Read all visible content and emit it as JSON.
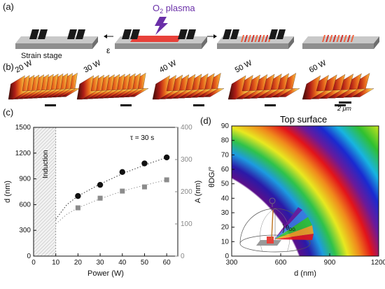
{
  "panel_a": {
    "label": "(a)",
    "plasma_label": "O",
    "plasma_sub": "2",
    "plasma_word": " plasma",
    "strain_stage": "Strain stage",
    "strain_symbol": "ε",
    "colors": {
      "stage": "#9a9a9a",
      "clamp": "#1a1a1a",
      "film": "#e8413a",
      "plasma": "#6a2fa8"
    }
  },
  "panel_b": {
    "label": "(b)",
    "samples": [
      {
        "power": "20 W",
        "ridges": 12
      },
      {
        "power": "30 W",
        "ridges": 11
      },
      {
        "power": "40 W",
        "ridges": 9
      },
      {
        "power": "50 W",
        "ridges": 8
      },
      {
        "power": "60 W",
        "ridges": 7
      }
    ],
    "scale_label": "2 μm"
  },
  "panel_c": {
    "label": "(c)",
    "annotation": "τ = 30 s",
    "induction": "Induction",
    "chart_data": {
      "type": "scatter",
      "xlabel": "Power (W)",
      "ylabel": "d (nm)",
      "y2label": "A (nm)",
      "xlim": [
        0,
        65
      ],
      "ylim": [
        0,
        1500
      ],
      "y2lim": [
        0,
        400
      ],
      "xticks": [
        "0",
        "10",
        "20",
        "30",
        "40",
        "50",
        "60"
      ],
      "yticks": [
        "0",
        "300",
        "600",
        "900",
        "1200",
        "1500"
      ],
      "y2ticks": [
        "0",
        "100",
        "200",
        "300",
        "400"
      ],
      "shaded_region": [
        0,
        10
      ],
      "series": [
        {
          "axis": "left",
          "marker": "circle",
          "color": "#111111",
          "x": [
            20,
            30,
            40,
            50,
            60
          ],
          "y": [
            700,
            830,
            980,
            1080,
            1150
          ]
        },
        {
          "axis": "right",
          "marker": "square",
          "color": "#8c8c8c",
          "x": [
            20,
            30,
            40,
            50,
            60
          ],
          "y": [
            150,
            180,
            202,
            215,
            237
          ]
        }
      ],
      "fit_curves": [
        {
          "axis": "left",
          "x": [
            10,
            15,
            20,
            30,
            40,
            50,
            60
          ],
          "y": [
            430,
            600,
            700,
            840,
            960,
            1060,
            1150
          ]
        },
        {
          "axis": "right",
          "x": [
            10,
            15,
            20,
            30,
            40,
            50,
            60
          ],
          "y": [
            100,
            130,
            150,
            178,
            202,
            220,
            237
          ]
        }
      ]
    }
  },
  "panel_d": {
    "label": "(d)",
    "title": "Top surface",
    "inset_label": "θ",
    "inset_sub": "DG",
    "chart_data": {
      "type": "heatmap",
      "xlabel": "d (nm)",
      "ylabel": "θDG/°",
      "xlim": [
        300,
        1200
      ],
      "ylim": [
        0,
        90
      ],
      "xticks": [
        "300",
        "600",
        "900",
        "1200"
      ],
      "yticks": [
        "0",
        "10",
        "20",
        "30",
        "40",
        "50",
        "60",
        "70",
        "80",
        "90"
      ]
    }
  }
}
